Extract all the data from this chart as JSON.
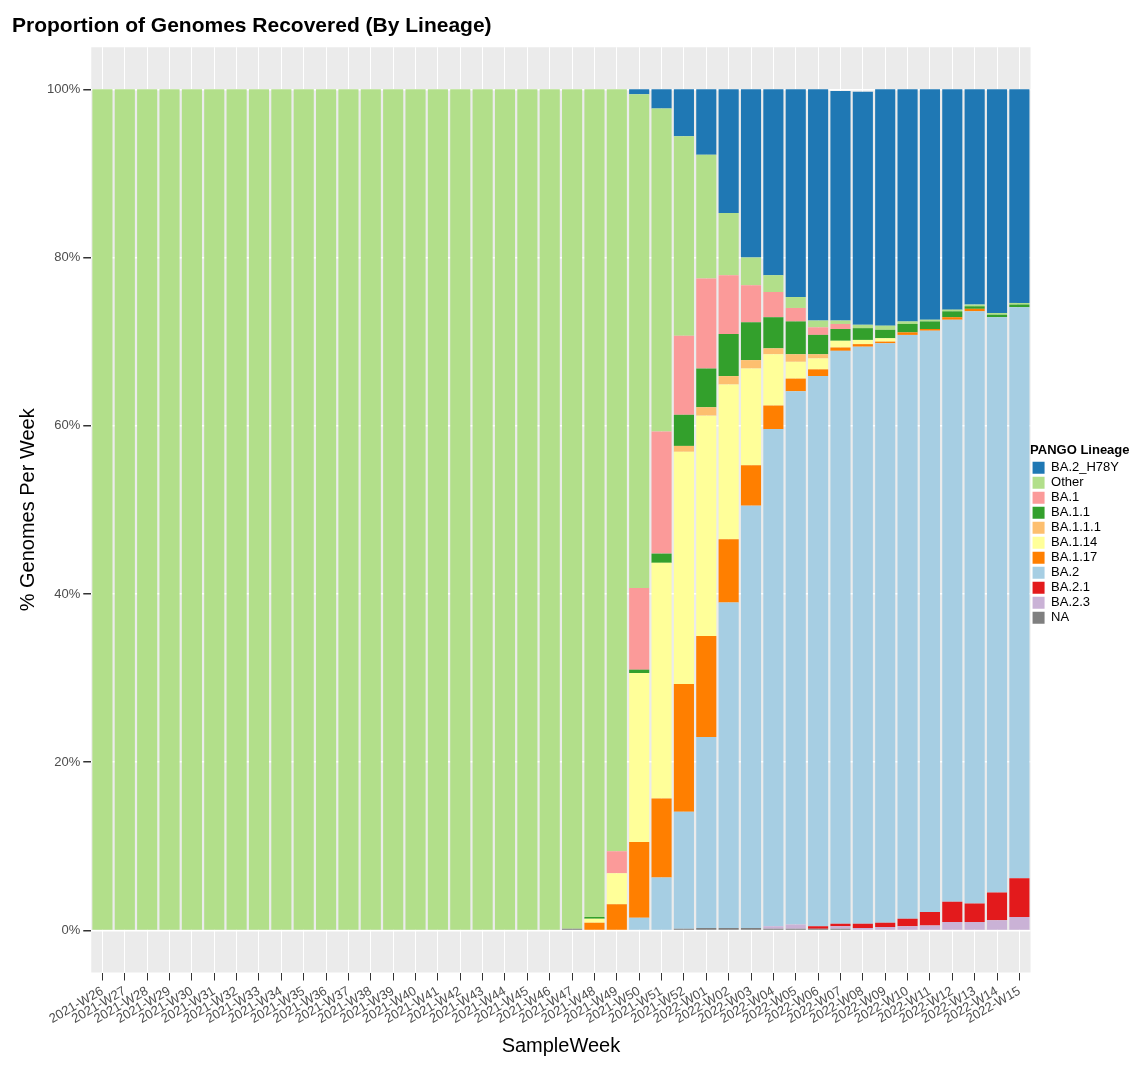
{
  "chart_data": {
    "type": "bar",
    "title": "Proportion of Genomes Recovered (By Lineage)",
    "xlabel": "SampleWeek",
    "ylabel": "% Genomes Per Week",
    "legend_title": "PANGO Lineage",
    "stacked": true,
    "grid": true,
    "legend": "right",
    "categories": [
      "2021-W26",
      "2021-W27",
      "2021-W28",
      "2021-W29",
      "2021-W30",
      "2021-W31",
      "2021-W32",
      "2021-W33",
      "2021-W34",
      "2021-W35",
      "2021-W36",
      "2021-W37",
      "2021-W38",
      "2021-W39",
      "2021-W40",
      "2021-W41",
      "2021-W42",
      "2021-W43",
      "2021-W44",
      "2021-W45",
      "2021-W46",
      "2021-W47",
      "2021-W48",
      "2021-W49",
      "2021-W50",
      "2021-W51",
      "2021-W52",
      "2022-W01",
      "2022-W02",
      "2022-W03",
      "2022-W04",
      "2022-W05",
      "2022-W06",
      "2022-W07",
      "2022-W08",
      "2022-W09",
      "2022-W10",
      "2022-W11",
      "2022-W12",
      "2022-W13",
      "2022-W14",
      "2022-W15"
    ],
    "ylim": [
      -5,
      105
    ],
    "yticks": [
      {
        "value": 0,
        "label": "0%"
      },
      {
        "value": 20,
        "label": "20%"
      },
      {
        "value": 40,
        "label": "40%"
      },
      {
        "value": 60,
        "label": "60%"
      },
      {
        "value": 80,
        "label": "80%"
      },
      {
        "value": 100,
        "label": "100%"
      }
    ],
    "series": [
      {
        "name": "NA",
        "color": "#7f7f7f",
        "values": [
          null,
          null,
          null,
          null,
          null,
          null,
          null,
          null,
          null,
          null,
          null,
          null,
          null,
          null,
          null,
          null,
          null,
          null,
          null,
          null,
          null,
          0.2,
          null,
          null,
          null,
          null,
          0.2,
          0.3,
          0.3,
          0.3,
          0.2,
          0.2,
          0.2,
          0.2,
          null,
          null,
          null,
          null,
          null,
          null,
          null,
          null
        ]
      },
      {
        "name": "BA.2.3",
        "color": "#cab2d6",
        "values": [
          null,
          null,
          null,
          null,
          null,
          null,
          null,
          null,
          null,
          null,
          null,
          null,
          null,
          null,
          null,
          null,
          null,
          null,
          null,
          null,
          null,
          null,
          null,
          null,
          null,
          null,
          null,
          null,
          null,
          null,
          0.3,
          0.5,
          null,
          0.3,
          0.3,
          0.4,
          0.5,
          0.6,
          1.0,
          1.0,
          1.2,
          1.6
        ]
      },
      {
        "name": "BA.2.1",
        "color": "#e31a1c",
        "values": [
          null,
          null,
          null,
          null,
          null,
          null,
          null,
          null,
          null,
          null,
          null,
          null,
          null,
          null,
          null,
          null,
          null,
          null,
          null,
          null,
          null,
          null,
          null,
          null,
          null,
          null,
          null,
          null,
          null,
          null,
          null,
          null,
          0.3,
          0.3,
          0.5,
          0.5,
          0.9,
          1.6,
          2.4,
          2.2,
          3.3,
          4.6
        ]
      },
      {
        "name": "BA.2",
        "color": "#a6cee3",
        "values": [
          null,
          null,
          null,
          null,
          null,
          null,
          null,
          null,
          null,
          null,
          null,
          null,
          null,
          null,
          null,
          null,
          null,
          null,
          null,
          null,
          null,
          null,
          null,
          null,
          1.5,
          6.3,
          13.9,
          22.7,
          38.7,
          50.2,
          59.1,
          63.4,
          65.4,
          68.1,
          68.6,
          68.9,
          69.4,
          69.1,
          69.2,
          70.4,
          68.4,
          67.9
        ]
      },
      {
        "name": "BA.1.17",
        "color": "#ff7f00",
        "values": [
          null,
          null,
          null,
          null,
          null,
          null,
          null,
          null,
          null,
          null,
          null,
          null,
          null,
          null,
          null,
          null,
          null,
          null,
          null,
          null,
          null,
          null,
          0.9,
          3.1,
          9.0,
          9.4,
          15.2,
          12.0,
          7.5,
          4.8,
          2.8,
          1.5,
          0.8,
          0.4,
          0.3,
          0.2,
          0.3,
          0.2,
          0.3,
          0.3,
          null,
          null
        ]
      },
      {
        "name": "BA.1.14",
        "color": "#ffff99",
        "values": [
          null,
          null,
          null,
          null,
          null,
          null,
          null,
          null,
          null,
          null,
          null,
          null,
          null,
          null,
          null,
          null,
          null,
          null,
          null,
          null,
          null,
          null,
          0.5,
          3.7,
          20.1,
          28.0,
          27.6,
          26.2,
          18.4,
          11.5,
          6.1,
          2.0,
          1.3,
          0.8,
          0.5,
          0.4,
          null,
          null,
          null,
          null,
          null,
          null
        ]
      },
      {
        "name": "BA.1.1.1",
        "color": "#fdbf6f",
        "values": [
          null,
          null,
          null,
          null,
          null,
          null,
          null,
          null,
          null,
          null,
          null,
          null,
          null,
          null,
          null,
          null,
          null,
          null,
          null,
          null,
          null,
          null,
          null,
          null,
          null,
          null,
          0.7,
          1.0,
          1.0,
          1.0,
          0.7,
          0.9,
          0.5,
          null,
          null,
          null,
          null,
          null,
          null,
          null,
          null,
          null
        ]
      },
      {
        "name": "BA.1.1",
        "color": "#33a02c",
        "values": [
          null,
          null,
          null,
          null,
          null,
          null,
          null,
          null,
          null,
          null,
          null,
          null,
          null,
          null,
          null,
          null,
          null,
          null,
          null,
          null,
          null,
          null,
          0.2,
          null,
          0.4,
          1.1,
          3.7,
          4.6,
          5.0,
          4.5,
          3.7,
          3.9,
          2.3,
          1.4,
          1.4,
          1.0,
          1.0,
          0.9,
          0.7,
          0.3,
          0.3,
          0.3
        ]
      },
      {
        "name": "BA.1",
        "color": "#fb9a99",
        "values": [
          null,
          null,
          null,
          null,
          null,
          null,
          null,
          null,
          null,
          null,
          null,
          null,
          null,
          null,
          null,
          null,
          null,
          null,
          null,
          null,
          null,
          null,
          null,
          2.6,
          9.7,
          14.5,
          9.4,
          10.7,
          7.0,
          4.4,
          3.0,
          1.6,
          0.9,
          0.6,
          null,
          null,
          null,
          null,
          null,
          null,
          null,
          null
        ]
      },
      {
        "name": "Other",
        "color": "#b2df8a",
        "values": [
          100,
          100,
          100,
          100,
          100,
          100,
          100,
          100,
          100,
          100,
          100,
          100,
          100,
          100,
          100,
          100,
          100,
          100,
          100,
          100,
          100,
          99.8,
          98.4,
          90.6,
          58.7,
          38.4,
          23.7,
          14.7,
          7.4,
          3.3,
          2.0,
          1.3,
          0.8,
          0.4,
          0.4,
          0.5,
          0.3,
          0.2,
          0.2,
          0.2,
          0.2,
          0.2
        ]
      },
      {
        "name": "BA.2_H78Y",
        "color": "#1f78b4",
        "values": [
          null,
          null,
          null,
          null,
          null,
          null,
          null,
          null,
          null,
          null,
          null,
          null,
          null,
          null,
          null,
          null,
          null,
          null,
          null,
          null,
          null,
          null,
          null,
          null,
          0.6,
          2.3,
          5.6,
          7.8,
          14.7,
          20.0,
          22.1,
          24.7,
          27.5,
          27.3,
          27.7,
          28.1,
          27.6,
          27.4,
          26.2,
          25.6,
          26.6,
          25.4
        ]
      }
    ]
  }
}
